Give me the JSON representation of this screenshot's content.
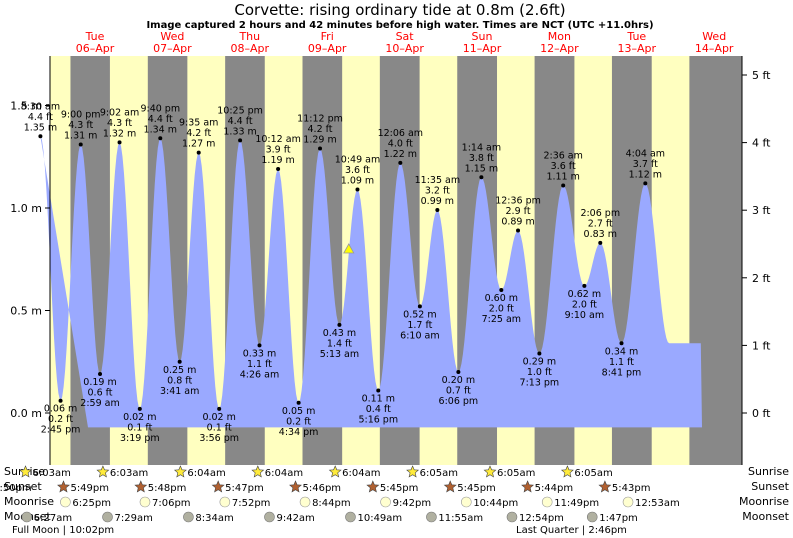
{
  "title": "Corvette: rising  ordinary tide at 0.8m (2.6ft)",
  "subtitle": "Image captured 2 hours and 42 minutes before high water. Times are NCT (UTC +11.0hrs)",
  "colors": {
    "night": "#888888",
    "day": "#ffffc0",
    "tide_fill": "#9aa9ff",
    "weekday_text": "#ff0000",
    "current_marker": "#ffff00",
    "sun_star": "#ffeb3b",
    "sunset_star": "#b06030",
    "moonrise": "#ffffd0",
    "moonset": "#b0b0a0"
  },
  "days": [
    {
      "weekday": "Tue",
      "date": "06–Apr"
    },
    {
      "weekday": "Wed",
      "date": "07–Apr"
    },
    {
      "weekday": "Thu",
      "date": "08–Apr"
    },
    {
      "weekday": "Fri",
      "date": "09–Apr"
    },
    {
      "weekday": "Sat",
      "date": "10–Apr"
    },
    {
      "weekday": "Sun",
      "date": "11–Apr"
    },
    {
      "weekday": "Mon",
      "date": "12–Apr"
    },
    {
      "weekday": "Tue",
      "date": "13–Apr"
    },
    {
      "weekday": "Wed",
      "date": "14–Apr"
    }
  ],
  "chart_data": {
    "type": "area",
    "x_start": "2021-04-06 00:00",
    "x_end": "2021-04-14 20:00",
    "ylim_m": [
      -0.15,
      1.65
    ],
    "ylim_ft": [
      -0.49,
      5.41
    ],
    "y_ticks_m": [
      "0.0 m",
      "0.5 m",
      "1.0 m",
      "1.5 m"
    ],
    "y_ticks_ft": [
      "0 ft",
      "1 ft",
      "2 ft",
      "3 ft",
      "4 ft",
      "5 ft"
    ],
    "series": [
      {
        "points": [
          {
            "day": 0,
            "time": "8:30 am",
            "m": "1.35 m",
            "ft": "4.4 ft",
            "value": 1.35,
            "type": "high"
          },
          {
            "day": 0,
            "time": "2:45 pm",
            "m": "0.06 m",
            "ft": "0.2 ft",
            "value": 0.06,
            "type": "low"
          },
          {
            "day": 0,
            "time": "9:00 pm",
            "m": "1.31 m",
            "ft": "4.3 ft",
            "value": 1.31,
            "type": "high"
          },
          {
            "day": 1,
            "time": "2:59 am",
            "m": "0.19 m",
            "ft": "0.6 ft",
            "value": 0.19,
            "type": "low"
          },
          {
            "day": 1,
            "time": "9:02 am",
            "m": "1.32 m",
            "ft": "4.3 ft",
            "value": 1.32,
            "type": "high"
          },
          {
            "day": 1,
            "time": "3:19 pm",
            "m": "0.02 m",
            "ft": "0.1 ft",
            "value": 0.02,
            "type": "low"
          },
          {
            "day": 1,
            "time": "9:40 pm",
            "m": "1.34 m",
            "ft": "4.4 ft",
            "value": 1.34,
            "type": "high"
          },
          {
            "day": 2,
            "time": "3:41 am",
            "m": "0.25 m",
            "ft": "0.8 ft",
            "value": 0.25,
            "type": "low"
          },
          {
            "day": 2,
            "time": "9:35 am",
            "m": "1.27 m",
            "ft": "4.2 ft",
            "value": 1.27,
            "type": "high"
          },
          {
            "day": 2,
            "time": "3:56 pm",
            "m": "0.02 m",
            "ft": "0.1 ft",
            "value": 0.02,
            "type": "low"
          },
          {
            "day": 2,
            "time": "10:25 pm",
            "m": "1.33 m",
            "ft": "4.4 ft",
            "value": 1.33,
            "type": "high"
          },
          {
            "day": 3,
            "time": "4:26 am",
            "m": "0.33 m",
            "ft": "1.1 ft",
            "value": 0.33,
            "type": "low"
          },
          {
            "day": 3,
            "time": "10:12 am",
            "m": "1.19 m",
            "ft": "3.9 ft",
            "value": 1.19,
            "type": "high"
          },
          {
            "day": 3,
            "time": "4:34 pm",
            "m": "0.05 m",
            "ft": "0.2 ft",
            "value": 0.05,
            "type": "low"
          },
          {
            "day": 3,
            "time": "11:12 pm",
            "m": "1.29 m",
            "ft": "4.2 ft",
            "value": 1.29,
            "type": "high"
          },
          {
            "day": 4,
            "time": "5:13 am",
            "m": "0.43 m",
            "ft": "1.4 ft",
            "value": 0.43,
            "type": "low"
          },
          {
            "day": 4,
            "time": "10:49 am",
            "m": "1.09 m",
            "ft": "3.6 ft",
            "value": 1.09,
            "type": "high"
          },
          {
            "day": 4,
            "time": "5:16 pm",
            "m": "0.11 m",
            "ft": "0.4 ft",
            "value": 0.11,
            "type": "low"
          },
          {
            "day": 5,
            "time": "12:06 am",
            "m": "1.22 m",
            "ft": "4.0 ft",
            "value": 1.22,
            "type": "high"
          },
          {
            "day": 5,
            "time": "6:10 am",
            "m": "0.52 m",
            "ft": "1.7 ft",
            "value": 0.52,
            "type": "low"
          },
          {
            "day": 5,
            "time": "11:35 am",
            "m": "0.99 m",
            "ft": "3.2 ft",
            "value": 0.99,
            "type": "high"
          },
          {
            "day": 5,
            "time": "6:06 pm",
            "m": "0.20 m",
            "ft": "0.7 ft",
            "value": 0.2,
            "type": "low"
          },
          {
            "day": 6,
            "time": "1:14 am",
            "m": "1.15 m",
            "ft": "3.8 ft",
            "value": 1.15,
            "type": "high"
          },
          {
            "day": 6,
            "time": "7:25 am",
            "m": "0.60 m",
            "ft": "2.0 ft",
            "value": 0.6,
            "type": "low"
          },
          {
            "day": 6,
            "time": "12:36 pm",
            "m": "0.89 m",
            "ft": "2.9 ft",
            "value": 0.89,
            "type": "high"
          },
          {
            "day": 6,
            "time": "7:13 pm",
            "m": "0.29 m",
            "ft": "1.0 ft",
            "value": 0.29,
            "type": "low"
          },
          {
            "day": 7,
            "time": "2:36 am",
            "m": "1.11 m",
            "ft": "3.6 ft",
            "value": 1.11,
            "type": "high"
          },
          {
            "day": 7,
            "time": "9:10 am",
            "m": "0.62 m",
            "ft": "2.0 ft",
            "value": 0.62,
            "type": "low"
          },
          {
            "day": 7,
            "time": "2:06 pm",
            "m": "0.83 m",
            "ft": "2.7 ft",
            "value": 0.83,
            "type": "high"
          },
          {
            "day": 7,
            "time": "8:41 pm",
            "m": "0.34 m",
            "ft": "1.1 ft",
            "value": 0.34,
            "type": "low"
          },
          {
            "day": 8,
            "time": "4:04 am",
            "m": "1.12 m",
            "ft": "3.7 ft",
            "value": 1.12,
            "type": "high"
          }
        ]
      }
    ],
    "current_tide": {
      "day": 4,
      "time": "8:07 am",
      "value": 0.8
    }
  },
  "sunrise": [
    "6:03am",
    "6:03am",
    "6:04am",
    "6:04am",
    "6:04am",
    "6:05am",
    "6:05am",
    "6:05am"
  ],
  "sunset": [
    "5:50pm",
    "5:49pm",
    "5:48pm",
    "5:47pm",
    "5:46pm",
    "5:45pm",
    "5:45pm",
    "5:44pm",
    "5:43pm"
  ],
  "sunset_days": [
    -1,
    0,
    1,
    2,
    3,
    4,
    5,
    6,
    7
  ],
  "moonrise": [
    "6:25pm",
    "7:06pm",
    "7:52pm",
    "8:44pm",
    "9:42pm",
    "10:44pm",
    "11:49pm",
    "12:53am"
  ],
  "moonrise_days": [
    0,
    1,
    2,
    3,
    4,
    5,
    6,
    8
  ],
  "moonset": [
    "6:27am",
    "7:29am",
    "8:34am",
    "9:42am",
    "10:49am",
    "11:55am",
    "12:54pm",
    "1:47pm"
  ],
  "row_labels": {
    "sunrise": "Sunrise",
    "sunset": "Sunset",
    "moonrise": "Moonrise",
    "moonset": "Moonset"
  },
  "moon_phases": [
    {
      "label": "Full Moon | 10:02pm"
    },
    {
      "label": "Last Quarter | 2:46pm"
    }
  ]
}
